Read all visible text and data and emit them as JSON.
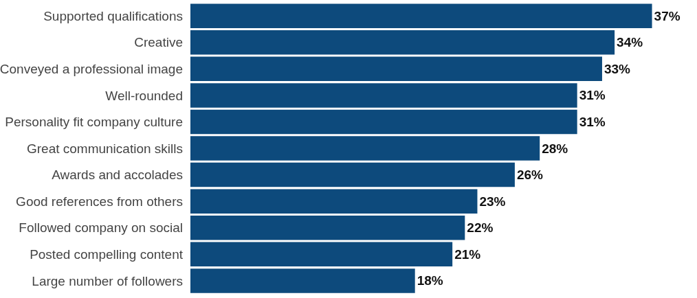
{
  "chart_data": {
    "type": "bar",
    "orientation": "horizontal",
    "categories": [
      "Supported qualifications",
      "Creative",
      "Conveyed a professional image",
      "Well-rounded",
      "Personality fit company culture",
      "Great communication skills",
      "Awards and accolades",
      "Good references from others",
      "Followed company on social",
      "Posted compelling content",
      "Large number of followers"
    ],
    "values": [
      37,
      34,
      33,
      31,
      31,
      28,
      26,
      23,
      22,
      21,
      18
    ],
    "value_labels": [
      "37%",
      "34%",
      "33%",
      "31%",
      "31%",
      "28%",
      "26%",
      "23%",
      "22%",
      "21%",
      "18%"
    ],
    "color": "#0d4a7c"
  }
}
